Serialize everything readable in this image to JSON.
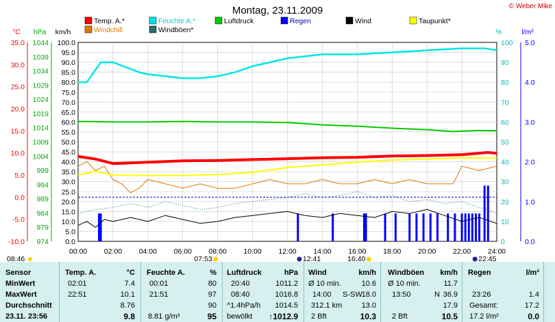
{
  "header": {
    "title": "Montag, 23.11.2009",
    "credit": "© Weber Mike"
  },
  "colors": {
    "temp": "#ff0000",
    "humidity": "#00e5e5",
    "pressure": "#00cc00",
    "rain": "#0000ff",
    "wind": "#000000",
    "dewpoint": "#ffff00",
    "windchill": "#e07800",
    "gusts": "#2f6f6f"
  },
  "axes": {
    "celsius": {
      "unit": "°C",
      "ticks": [
        "35.0",
        "30.0",
        "25.0",
        "20.0",
        "15.0",
        "10.0",
        "5.0",
        "0.0",
        "-5.0",
        "-10.0"
      ]
    },
    "hpa": {
      "unit": "hPa",
      "ticks": [
        "1044",
        "1039",
        "1034",
        "1029",
        "1024",
        "1019",
        "1014",
        "1009",
        "1004",
        "999",
        "994",
        "989",
        "984",
        "979",
        "974"
      ]
    },
    "kmh": {
      "unit": "km/h",
      "ticks": [
        "100.0",
        "95.0",
        "90.0",
        "85.0",
        "80.0",
        "75.0",
        "70.0",
        "65.0",
        "60.0",
        "55.0",
        "50.0",
        "45.0",
        "40.0",
        "35.0",
        "30.0",
        "25.0",
        "20.0",
        "15.0",
        "10.0",
        "5.0",
        "0.0"
      ]
    },
    "percent": {
      "unit": "%",
      "ticks": [
        "100",
        "90",
        "80",
        "70",
        "60",
        "50",
        "40",
        "30",
        "20",
        "10",
        "0"
      ]
    },
    "rain": {
      "unit": "l/m²",
      "ticks": [
        "5.0",
        "4.0",
        "3.0",
        "2.0",
        "1.0",
        "0.0"
      ]
    },
    "time": {
      "ticks": [
        "00:00",
        "02:00",
        "04:00",
        "06:00",
        "08:00",
        "10:00",
        "12:00",
        "14:00",
        "16:00",
        "18:00",
        "20:00",
        "22:00",
        "24:00"
      ]
    }
  },
  "sun": {
    "sunrise": "07:53",
    "sunset": "16:40",
    "moonrise": "12:41",
    "moonset": "22:45",
    "left_time": "08:46"
  },
  "chart_data": {
    "type": "line",
    "x_unit": "hours",
    "legend": [
      "Temp. A.*",
      "Feuchte A.*",
      "Luftdruck",
      "Regen",
      "Wind",
      "Taupunkt*",
      "Windchill",
      "Windböen*"
    ],
    "series": [
      {
        "name": "Temp. A.*",
        "axis": "celsius",
        "x": [
          0,
          1,
          2,
          4,
          6,
          8,
          10,
          12,
          14,
          16,
          18,
          20,
          22,
          23.5,
          24
        ],
        "y": [
          9.2,
          8.6,
          7.6,
          7.9,
          8.2,
          8.3,
          8.5,
          8.7,
          8.9,
          9.0,
          9.3,
          9.4,
          9.6,
          10.1,
          9.9
        ]
      },
      {
        "name": "Feuchte A.*",
        "axis": "percent",
        "x": [
          0,
          0.5,
          1.3,
          2,
          2.6,
          3.5,
          4,
          5,
          6,
          7,
          8,
          9,
          10,
          11,
          12,
          13,
          14,
          16,
          18,
          20,
          22,
          23.3,
          24
        ],
        "y": [
          80,
          80,
          90,
          90,
          88,
          85,
          84,
          83,
          82,
          82,
          83,
          85,
          88,
          90,
          92,
          93,
          94,
          94,
          95,
          96,
          97,
          97,
          96
        ]
      },
      {
        "name": "Luftdruck",
        "axis": "hpa",
        "x": [
          0,
          2,
          4,
          6,
          8,
          10,
          12,
          13,
          14,
          16,
          18,
          20,
          21.5,
          22,
          23,
          24
        ],
        "y": [
          1016.2,
          1016.0,
          1016.0,
          1016.2,
          1016.0,
          1016.0,
          1015.8,
          1015.4,
          1015.0,
          1014.5,
          1013.8,
          1013.3,
          1012.6,
          1012.8,
          1013.0,
          1012.9
        ]
      },
      {
        "name": "Taupunkt*",
        "axis": "celsius",
        "x": [
          0,
          1,
          2,
          4,
          6,
          8,
          10,
          12,
          14,
          16,
          18,
          20,
          22,
          24
        ],
        "y": [
          5.0,
          5.8,
          5.0,
          4.9,
          4.9,
          5.1,
          5.6,
          6.7,
          7.3,
          7.9,
          8.4,
          8.6,
          8.9,
          8.8
        ]
      },
      {
        "name": "Windchill",
        "axis": "celsius",
        "x": [
          0,
          0.5,
          1,
          1.5,
          2,
          2.5,
          3,
          3.5,
          4,
          5,
          6,
          7,
          8,
          9,
          10,
          11,
          12,
          13,
          14,
          15,
          16,
          17,
          18,
          19,
          20,
          21,
          21.5,
          22,
          23,
          24
        ],
        "y": [
          7,
          8,
          6,
          7,
          4,
          3,
          1,
          2,
          4,
          3,
          2,
          3,
          2,
          2,
          3,
          4,
          3,
          3,
          4,
          3,
          3,
          4,
          3,
          4,
          3,
          3,
          3,
          7,
          6,
          7
        ]
      },
      {
        "name": "Wind",
        "axis": "kmh",
        "x": [
          0,
          0.5,
          1,
          1.5,
          2,
          3,
          4,
          5,
          6,
          7,
          8,
          9,
          10,
          11,
          12,
          13,
          14,
          15,
          16,
          17,
          18,
          19,
          20,
          21,
          22,
          23,
          24
        ],
        "y": [
          8,
          10,
          7,
          11,
          10,
          12,
          10,
          13,
          11,
          9,
          10,
          12,
          13,
          14,
          15,
          13,
          12,
          14,
          13,
          12,
          15,
          14,
          16,
          13,
          10,
          12,
          9
        ]
      },
      {
        "name": "Windböen*",
        "axis": "kmh",
        "x": [
          0,
          1,
          2,
          3,
          4,
          5,
          6,
          7,
          8,
          9,
          10,
          11,
          12,
          13,
          14,
          15,
          16,
          17,
          18,
          19,
          20,
          21,
          22,
          23,
          24
        ],
        "y": [
          14,
          16,
          17,
          19,
          17,
          20,
          18,
          16,
          17,
          19,
          20,
          21,
          22,
          24,
          22,
          23,
          25,
          22,
          23,
          20,
          21,
          19,
          20,
          17,
          14
        ]
      },
      {
        "name": "Regen",
        "axis": "rain",
        "type": "bar",
        "x": [
          1.2,
          1.3,
          12.6,
          14.6,
          16.4,
          16.5,
          17.6,
          18.2,
          19.0,
          19.4,
          19.8,
          20.2,
          20.6,
          21.2,
          21.6,
          22.0,
          22.2,
          22.4,
          22.6,
          22.8,
          23.0,
          23.3,
          23.5
        ],
        "y": [
          0.7,
          0.7,
          0.7,
          0.7,
          0.7,
          0.7,
          0.7,
          0.7,
          0.7,
          0.7,
          0.7,
          0.7,
          0.7,
          0.7,
          0.7,
          0.7,
          0.7,
          0.7,
          0.7,
          0.7,
          0.7,
          1.4,
          1.4
        ]
      }
    ],
    "reference_line": {
      "name": "frost",
      "axis": "celsius",
      "y": 0
    }
  },
  "table": {
    "sensor": {
      "title": "Sensor",
      "rows": [
        "MinWert",
        "MaxWert",
        "Durchschnitt"
      ],
      "footer": "23.11. 23:56"
    },
    "temp": {
      "title": "Temp. A.",
      "unit": "°C",
      "rows": [
        [
          "02:01",
          "7.4"
        ],
        [
          "22:51",
          "10.1"
        ],
        [
          "",
          "8.76"
        ]
      ],
      "current": "9.8"
    },
    "humidity": {
      "title": "Feuchte A.",
      "unit": "%",
      "rows": [
        [
          "00:01",
          "80"
        ],
        [
          "21:51",
          "97"
        ],
        [
          "",
          "90"
        ]
      ],
      "footer_left": "8.81 g/m³",
      "current": "95"
    },
    "pressure": {
      "title": "Luftdruck",
      "unit": "hPa",
      "rows": [
        [
          "20:40",
          "1011.2"
        ],
        [
          "08:40",
          "1016.8"
        ],
        [
          "^1.4hPa/h",
          "1014.5"
        ]
      ],
      "footer_left": "bewölkt",
      "current": "↑1012.9"
    },
    "wind": {
      "title": "Wind",
      "unit": "km/h",
      "rows": [
        [
          "Ø 10 min.",
          "",
          "10.6"
        ],
        [
          "14:00",
          "S-SW",
          "18.0"
        ],
        [
          "312.1 km",
          "",
          "13.0"
        ]
      ],
      "footer_left": "2 Bft",
      "current": "10.3"
    },
    "gusts": {
      "title": "Windböen",
      "unit": "km/h",
      "rows": [
        [
          "Ø 10 min.",
          "",
          "11.7"
        ],
        [
          "13:50",
          "N",
          "36.9"
        ],
        [
          "",
          "",
          "17.9"
        ]
      ],
      "footer_left": "2 Bft",
      "current": "10.5"
    },
    "rain": {
      "title": "Regen",
      "unit": "l/m²",
      "rows": [
        [
          "",
          "1.4"
        ],
        [
          "23:26",
          ""
        ],
        [
          "Gesamt:",
          "17.2"
        ]
      ],
      "footer_left": "17.2 l/m²",
      "current": "0.0"
    }
  }
}
